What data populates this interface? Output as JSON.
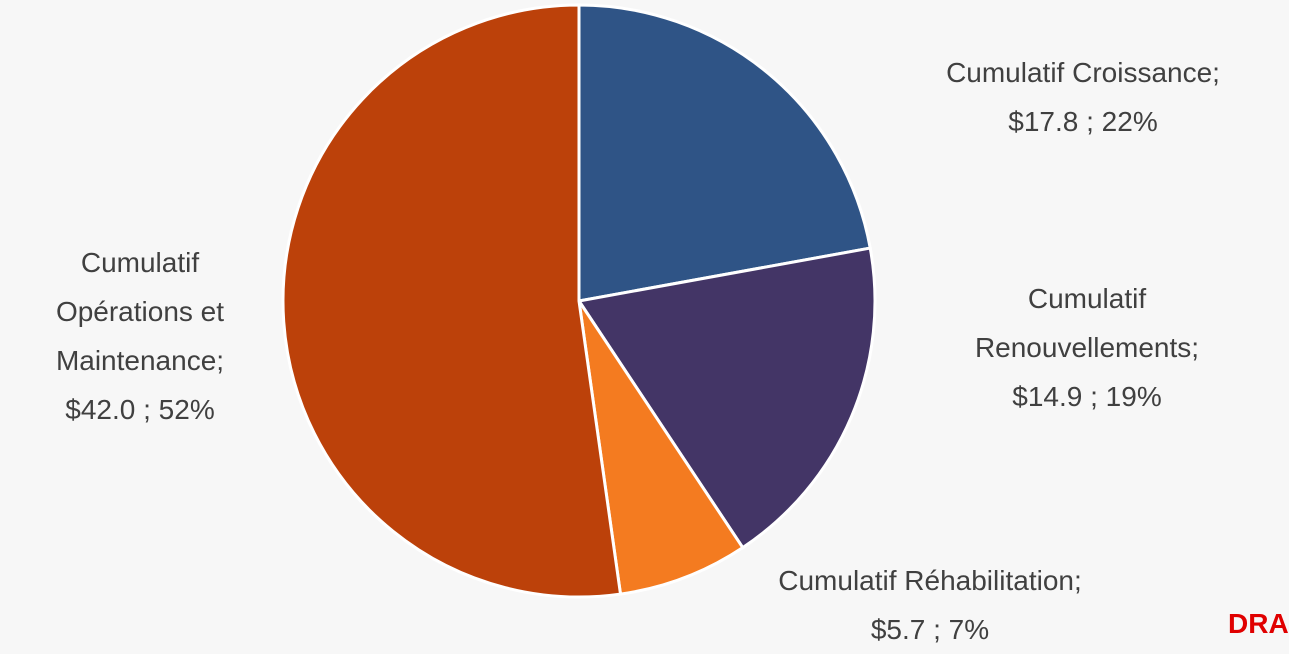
{
  "chart_data": {
    "type": "pie",
    "categories": [
      "Cumulatif Croissance;",
      "Cumulatif Renouvellements;",
      "Cumulatif Réhabilitation;",
      "Cumulatif Opérations et Maintenance;"
    ],
    "values": [
      17.8,
      14.9,
      5.7,
      42.0
    ],
    "value_labels": [
      "$17.8 ; 22%",
      "$14.9 ; 19%",
      "$5.7 ; 7%",
      "$42.0 ; 52%"
    ],
    "colors": [
      "#2f5486",
      "#433566",
      "#f47b20",
      "#bc410a"
    ],
    "watermark": "DRA"
  }
}
